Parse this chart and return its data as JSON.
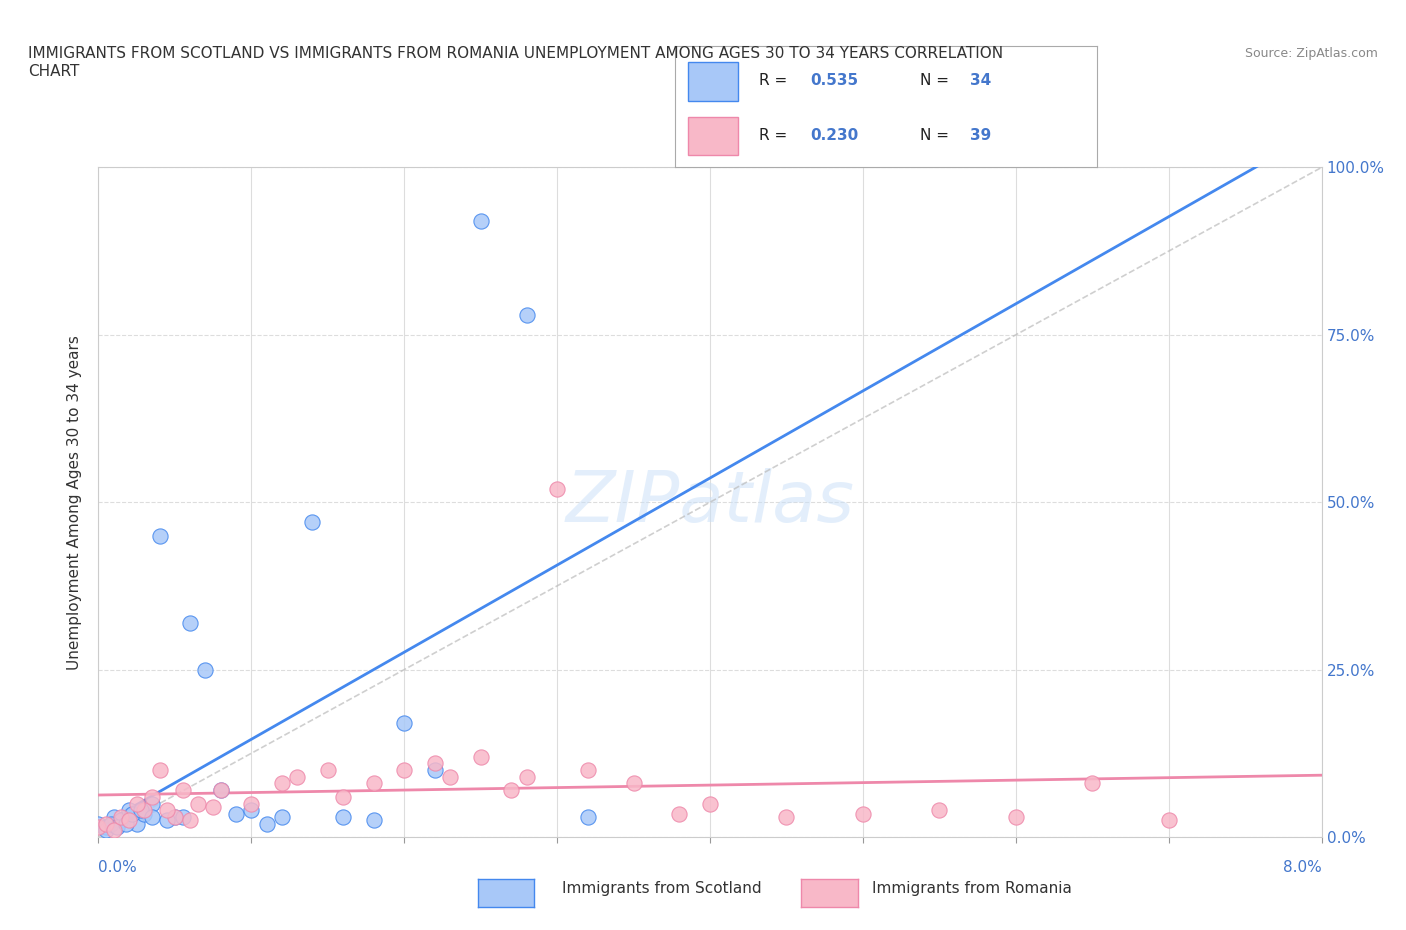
{
  "title": "IMMIGRANTS FROM SCOTLAND VS IMMIGRANTS FROM ROMANIA UNEMPLOYMENT AMONG AGES 30 TO 34 YEARS CORRELATION\nCHART",
  "source": "Source: ZipAtlas.com",
  "xlabel_bottom_left": "0.0%",
  "xlabel_bottom_right": "8.0%",
  "ylabel_right": [
    "0.0%",
    "25.0%",
    "50.0%",
    "75.0%",
    "100.0%"
  ],
  "ylabel_left": "Unemployment Among Ages 30 to 34 years",
  "xlim": [
    0.0,
    8.0
  ],
  "ylim": [
    0.0,
    100.0
  ],
  "scotland_color": "#a8c8f8",
  "romania_color": "#f8b8c8",
  "scotland_line_color": "#4488ee",
  "romania_line_color": "#ee88aa",
  "legend_R_scotland": "0.535",
  "legend_N_scotland": "34",
  "legend_R_romania": "0.230",
  "legend_N_romania": "39",
  "legend_text_color": "#4477cc",
  "diag_line_color": "#bbbbbb",
  "watermark": "ZIPatlas",
  "scotland_x": [
    0.0,
    0.05,
    0.1,
    0.15,
    0.2,
    0.25,
    0.3,
    0.35,
    0.4,
    0.5,
    0.6,
    0.7,
    0.8,
    0.9,
    1.0,
    1.1,
    1.2,
    1.4,
    1.6,
    1.8,
    2.0,
    2.2,
    2.5,
    2.8,
    3.2,
    0.05,
    0.08,
    0.12,
    0.18,
    0.22,
    0.28,
    0.35,
    0.45,
    0.55
  ],
  "scotland_y": [
    2.0,
    1.5,
    3.0,
    2.5,
    4.0,
    2.0,
    3.5,
    5.0,
    45.0,
    3.0,
    32.0,
    25.0,
    7.0,
    3.5,
    4.0,
    2.0,
    3.0,
    47.0,
    3.0,
    2.5,
    17.0,
    10.0,
    92.0,
    78.0,
    3.0,
    1.0,
    2.0,
    1.5,
    2.0,
    3.5,
    4.0,
    3.0,
    2.5,
    3.0
  ],
  "romania_x": [
    0.0,
    0.05,
    0.1,
    0.15,
    0.2,
    0.3,
    0.4,
    0.5,
    0.6,
    0.8,
    1.0,
    1.2,
    1.5,
    1.8,
    2.0,
    2.2,
    2.5,
    2.8,
    3.0,
    3.2,
    3.5,
    4.0,
    4.5,
    5.0,
    5.5,
    6.0,
    6.5,
    7.0,
    0.25,
    0.35,
    0.45,
    0.55,
    0.65,
    0.75,
    1.3,
    1.6,
    2.3,
    2.7,
    3.8
  ],
  "romania_y": [
    1.5,
    2.0,
    1.0,
    3.0,
    2.5,
    4.0,
    10.0,
    3.0,
    2.5,
    7.0,
    5.0,
    8.0,
    10.0,
    8.0,
    10.0,
    11.0,
    12.0,
    9.0,
    52.0,
    10.0,
    8.0,
    5.0,
    3.0,
    3.5,
    4.0,
    3.0,
    8.0,
    2.5,
    5.0,
    6.0,
    4.0,
    7.0,
    5.0,
    4.5,
    9.0,
    6.0,
    9.0,
    7.0,
    3.5
  ],
  "background_color": "#ffffff",
  "grid_color": "#dddddd"
}
